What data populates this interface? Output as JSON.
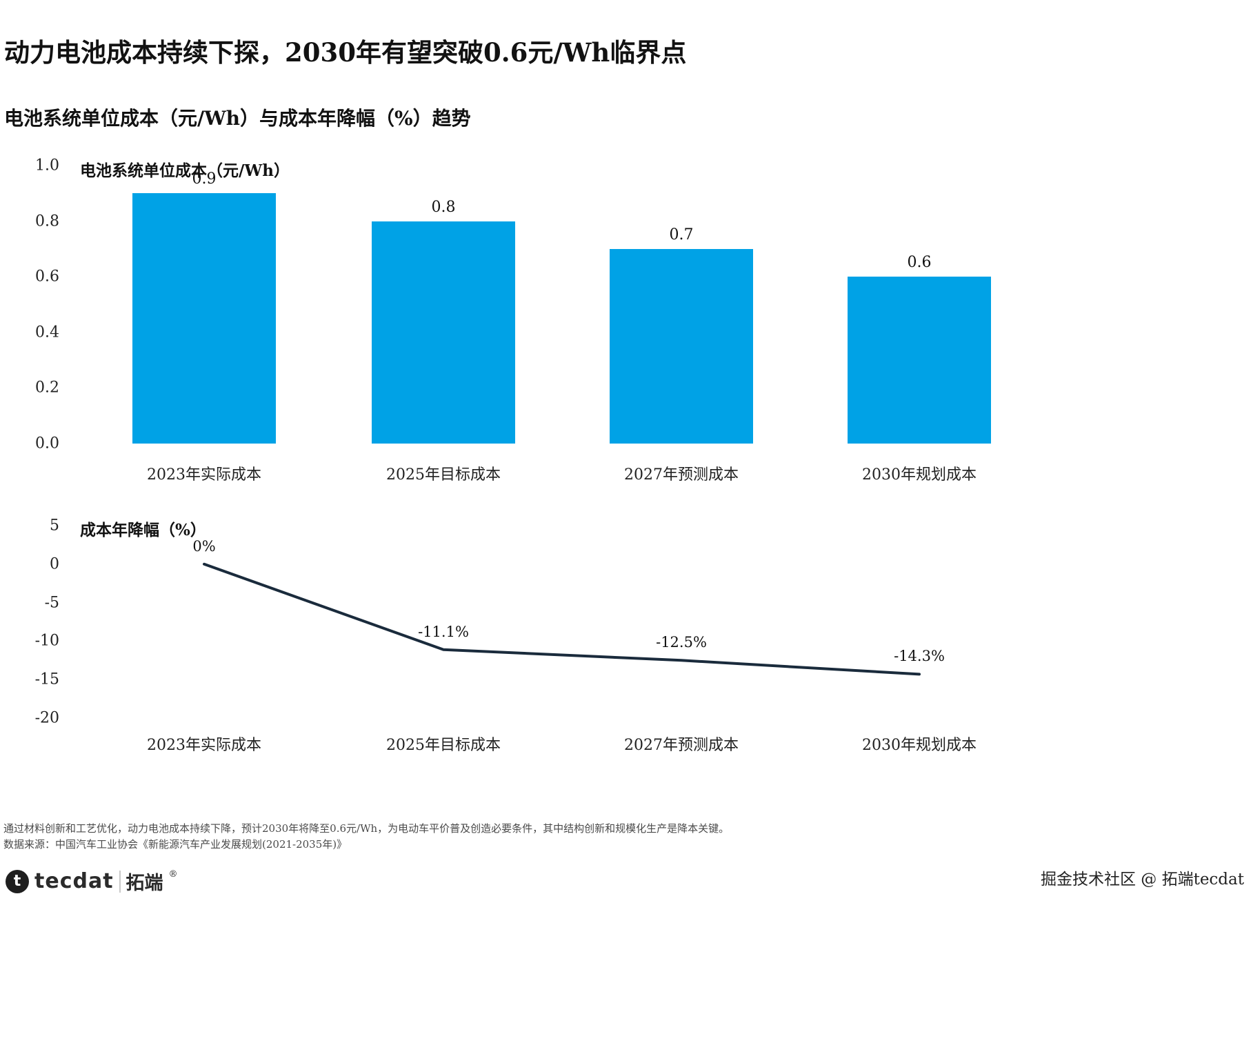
{
  "page": {
    "title": "动力电池成本持续下探，2030年有望突破0.6元/Wh临界点",
    "subtitle": "电池系统单位成本（元/Wh）与成本年降幅（%）趋势",
    "note_line1": "通过材料创新和工艺优化，动力电池成本持续下降，预计2030年将降至0.6元/Wh，为电动车平价普及创造必要条件，其中结构创新和规模化生产是降本关键。",
    "note_line2": "数据来源：中国汽车工业协会《新能源汽车产业发展规划(2021-2035年)》",
    "brand": {
      "logo_glyph": "t",
      "logo_text": "tecdat",
      "logo_suffix": "拓端",
      "reg_mark": "®"
    },
    "watermark": "掘金技术社区 @ 拓端tecdat"
  },
  "chart_data": [
    {
      "type": "bar",
      "title": "电池系统单位成本（元/Wh）",
      "categories": [
        "2023年实际成本",
        "2025年目标成本",
        "2027年预测成本",
        "2030年规划成本"
      ],
      "values": [
        0.9,
        0.8,
        0.7,
        0.6
      ],
      "value_labels": [
        "0.9",
        "0.8",
        "0.7",
        "0.6"
      ],
      "ylim": [
        0,
        1.0
      ],
      "yticks": [
        1.0,
        0.8,
        0.6,
        0.4,
        0.2,
        0.0
      ],
      "ytick_labels": [
        "1.0",
        "0.8",
        "0.6",
        "0.4",
        "0.2",
        "0.0"
      ],
      "bar_color": "#00a2e6",
      "grid": false,
      "legend": "none"
    },
    {
      "type": "line",
      "title": "成本年降幅（%）",
      "categories": [
        "2023年实际成本",
        "2025年目标成本",
        "2027年预测成本",
        "2030年规划成本"
      ],
      "values": [
        0,
        -11.1,
        -12.5,
        -14.3
      ],
      "value_labels": [
        "0%",
        "-11.1%",
        "-12.5%",
        "-14.3%"
      ],
      "ylim": [
        -20,
        5
      ],
      "yticks": [
        5,
        0,
        -5,
        -10,
        -15,
        -20
      ],
      "ytick_labels": [
        "5",
        "0",
        "-5",
        "-10",
        "-15",
        "-20"
      ],
      "line_color": "#1a2b3c",
      "grid": false,
      "legend": "none"
    }
  ]
}
